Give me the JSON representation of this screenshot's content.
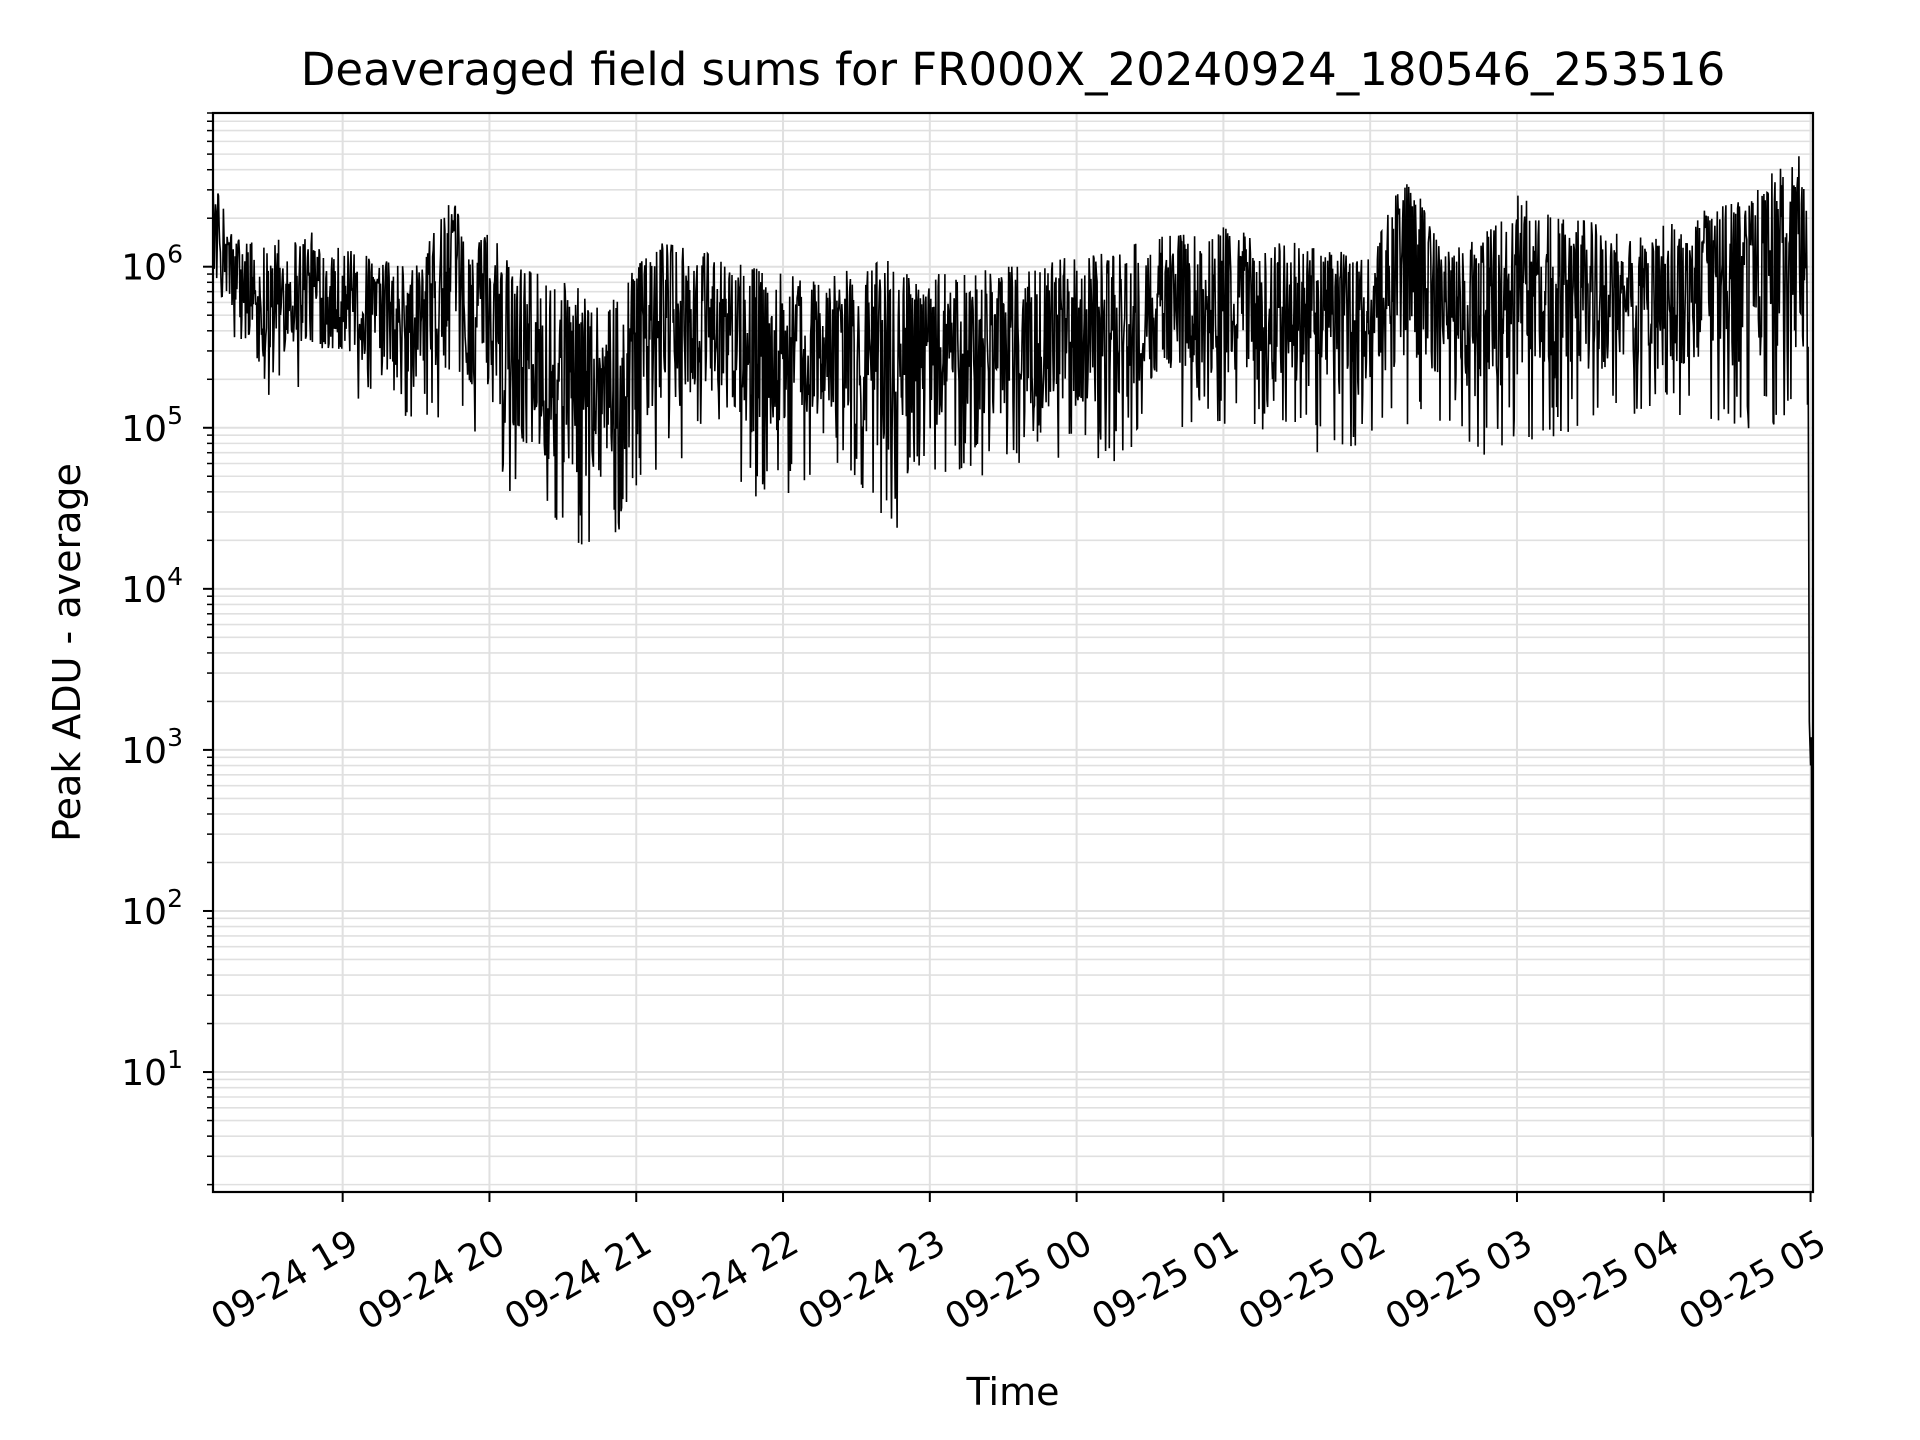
{
  "chart_data": {
    "type": "line",
    "title": "Deaveraged field sums for FR000X_20240924_180546_253516",
    "xlabel": "Time",
    "ylabel": "Peak ADU - average",
    "y_scale": "log",
    "ylim": [
      1.8,
      9000000
    ],
    "xlim": [
      "2024-09-24 18:07",
      "2024-09-25 05:01"
    ],
    "grid": true,
    "line_color": "#000000",
    "x_ticks": [
      {
        "t": "2024-09-24 19:00",
        "label": "09-24 19"
      },
      {
        "t": "2024-09-24 20:00",
        "label": "09-24 20"
      },
      {
        "t": "2024-09-24 21:00",
        "label": "09-24 21"
      },
      {
        "t": "2024-09-24 22:00",
        "label": "09-24 22"
      },
      {
        "t": "2024-09-24 23:00",
        "label": "09-24 23"
      },
      {
        "t": "2024-09-25 00:00",
        "label": "09-25 00"
      },
      {
        "t": "2024-09-25 01:00",
        "label": "09-25 01"
      },
      {
        "t": "2024-09-25 02:00",
        "label": "09-25 02"
      },
      {
        "t": "2024-09-25 03:00",
        "label": "09-25 03"
      },
      {
        "t": "2024-09-25 04:00",
        "label": "09-25 04"
      },
      {
        "t": "2024-09-25 05:00",
        "label": "09-25 05"
      }
    ],
    "y_ticks": [
      {
        "value": 10,
        "base": "10",
        "exp": "1"
      },
      {
        "value": 100,
        "base": "10",
        "exp": "2"
      },
      {
        "value": 1000,
        "base": "10",
        "exp": "3"
      },
      {
        "value": 10000,
        "base": "10",
        "exp": "4"
      },
      {
        "value": 100000,
        "base": "10",
        "exp": "5"
      },
      {
        "value": 1000000,
        "base": "10",
        "exp": "6"
      }
    ],
    "series": [
      {
        "x": [
          "2024-09-24 18:07",
          "2024-09-24 18:15",
          "2024-09-24 18:30",
          "2024-09-24 18:45",
          "2024-09-24 19:00",
          "2024-09-24 19:15",
          "2024-09-24 19:30",
          "2024-09-24 19:45",
          "2024-09-24 19:52",
          "2024-09-24 20:00",
          "2024-09-24 20:10",
          "2024-09-24 20:20",
          "2024-09-24 20:30",
          "2024-09-24 20:40",
          "2024-09-24 20:50",
          "2024-09-24 21:00",
          "2024-09-24 21:10",
          "2024-09-24 21:20",
          "2024-09-24 21:30",
          "2024-09-24 21:45",
          "2024-09-24 22:00",
          "2024-09-24 22:15",
          "2024-09-24 22:30",
          "2024-09-24 22:45",
          "2024-09-24 22:50",
          "2024-09-24 23:00",
          "2024-09-24 23:15",
          "2024-09-24 23:30",
          "2024-09-24 23:45",
          "2024-09-25 00:00",
          "2024-09-25 00:15",
          "2024-09-25 00:30",
          "2024-09-25 00:45",
          "2024-09-25 01:00",
          "2024-09-25 01:15",
          "2024-09-25 01:30",
          "2024-09-25 01:45",
          "2024-09-25 02:00",
          "2024-09-25 02:15",
          "2024-09-25 02:30",
          "2024-09-25 02:45",
          "2024-09-25 03:00",
          "2024-09-25 03:15",
          "2024-09-25 03:30",
          "2024-09-25 03:45",
          "2024-09-25 04:00",
          "2024-09-25 04:15",
          "2024-09-25 04:30",
          "2024-09-25 04:45",
          "2024-09-25 04:55",
          "2024-09-25 04:59",
          "2024-09-25 05:00",
          "2024-09-25 05:01"
        ],
        "y_high": [
          3500000,
          1600000,
          1400000,
          1700000,
          1300000,
          1100000,
          1000000,
          2700000,
          1200000,
          1700000,
          1000000,
          900000,
          800000,
          700000,
          600000,
          1000000,
          1400000,
          1300000,
          1200000,
          1000000,
          900000,
          800000,
          1000000,
          1100000,
          900000,
          900000,
          900000,
          1000000,
          1000000,
          1200000,
          1300000,
          1500000,
          1600000,
          1800000,
          1500000,
          1400000,
          1300000,
          1100000,
          4200000,
          1200000,
          1500000,
          2800000,
          2000000,
          1900000,
          1500000,
          1800000,
          2200000,
          2500000,
          4000000,
          5000000,
          3000000,
          1500000,
          4
        ],
        "y_low": [
          500000,
          300000,
          150000,
          170000,
          170000,
          100000,
          110000,
          90000,
          90000,
          60000,
          35000,
          25000,
          20000,
          18000,
          18000,
          35000,
          50000,
          60000,
          80000,
          40000,
          30000,
          60000,
          40000,
          18000,
          40000,
          40000,
          50000,
          50000,
          60000,
          60000,
          60000,
          80000,
          100000,
          100000,
          90000,
          80000,
          60000,
          80000,
          90000,
          100000,
          60000,
          80000,
          80000,
          100000,
          100000,
          100000,
          120000,
          90000,
          100000,
          100000,
          100000,
          800,
          4
        ]
      }
    ]
  }
}
